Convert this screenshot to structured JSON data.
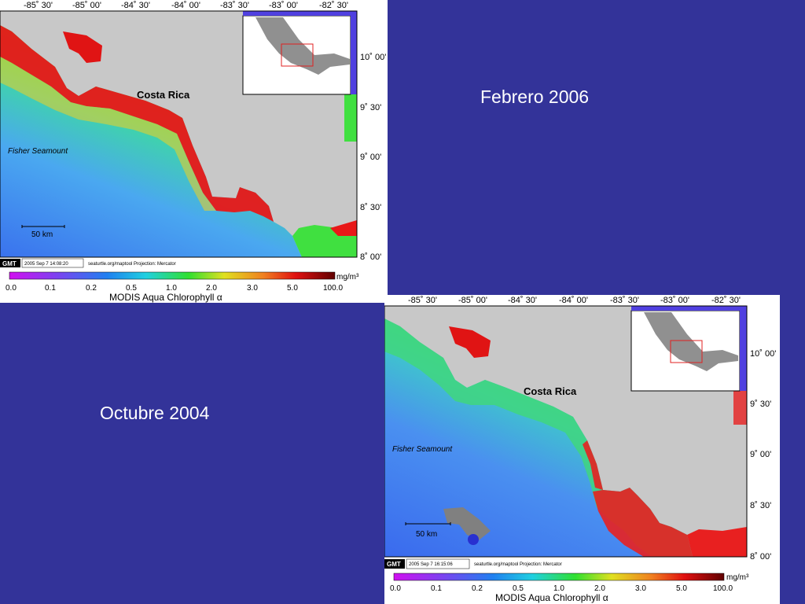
{
  "captions": {
    "top_map": "Febrero 2006",
    "bottom_map": "Octubre 2004"
  },
  "top_map": {
    "lon_labels": [
      "-85˚ 30'",
      "-85˚ 00'",
      "-84˚ 30'",
      "-84˚ 00'",
      "-83˚ 30'",
      "-83˚ 00'",
      "-82˚ 30'"
    ],
    "lat_labels": [
      "10˚ 00'",
      "9˚ 30'",
      "9˚ 00'",
      "8˚ 30'",
      "8˚ 00'"
    ],
    "country_label": "Costa Rica",
    "feature_label": "Fisher Seamount",
    "scale_label": "50 km",
    "gmt_logo": "GMT",
    "timestamp": "2005 Sep 7 14:08:20",
    "source_text": "seaturtle.org/maptool Projection: Mercator",
    "colorbar_ticks": [
      "0.0",
      "0.1",
      "0.2",
      "0.5",
      "1.0",
      "2.0",
      "3.0",
      "5.0",
      "100.0"
    ],
    "colorbar_unit": "mg/m³",
    "colorbar_title": "MODIS Aqua Chlorophyll α"
  },
  "bottom_map": {
    "lon_labels": [
      "-85˚ 30'",
      "-85˚ 00'",
      "-84˚ 30'",
      "-84˚ 00'",
      "-83˚ 30'",
      "-83˚ 00'",
      "-82˚ 30'"
    ],
    "lat_labels": [
      "10˚ 00'",
      "9˚ 30'",
      "9˚ 00'",
      "8˚ 30'",
      "8˚ 00'"
    ],
    "country_label": "Costa Rica",
    "feature_label": "Fisher Seamount",
    "scale_label": "50 km",
    "gmt_logo": "GMT",
    "timestamp": "2005 Sep 7 16:15:06",
    "source_text": "seaturtle.org/maptool Projection: Mercator",
    "colorbar_ticks": [
      "0.0",
      "0.1",
      "0.2",
      "0.5",
      "1.0",
      "2.0",
      "3.0",
      "5.0",
      "100.0"
    ],
    "colorbar_unit": "mg/m³",
    "colorbar_title": "MODIS Aqua Chlorophyll α"
  },
  "colors": {
    "background": "#333399",
    "land": "#c8c8c8",
    "ocean_low": "#3c78f0",
    "ocean_mid": "#32c8b4",
    "ocean_green": "#3cdc3c",
    "ocean_yellow": "#f0dc28",
    "ocean_high": "#f01414",
    "inset_frame": "#5040e0",
    "inset_box": "#e02020"
  }
}
